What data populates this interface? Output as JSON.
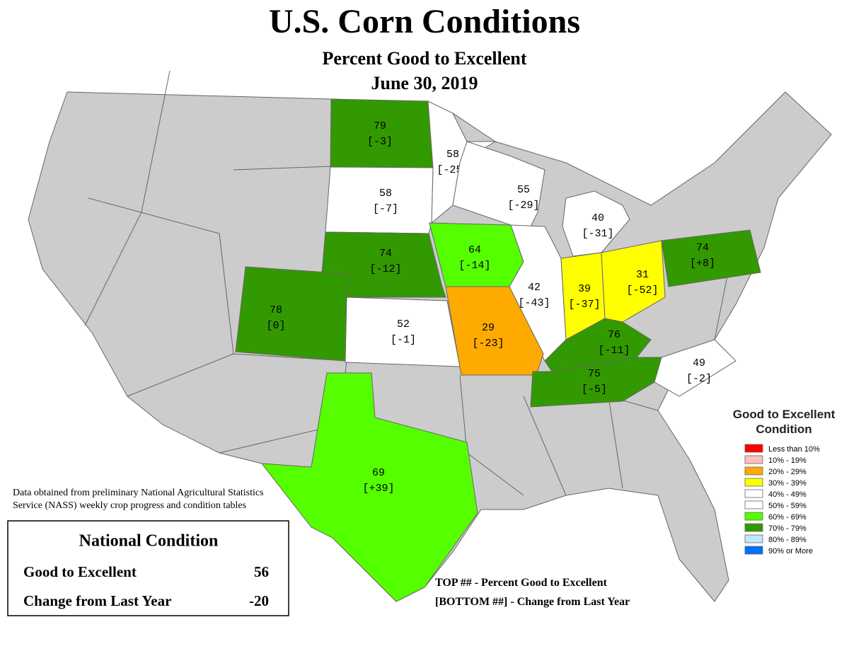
{
  "header": {
    "title": "U.S. Corn Conditions",
    "subtitle": "Percent Good to Excellent",
    "date": "June 30, 2019"
  },
  "states": [
    {
      "value": 79,
      "change": "[-3]",
      "color": "#339900"
    },
    {
      "value": 58,
      "change": "[-25]",
      "color": "#ffffff"
    },
    {
      "value": 58,
      "change": "[-7]",
      "color": "#ffffff"
    },
    {
      "value": 55,
      "change": "[-29]",
      "color": "#ffffff"
    },
    {
      "value": 40,
      "change": "[-31]",
      "color": "#ffffff"
    },
    {
      "value": 74,
      "change": "[-12]",
      "color": "#339900"
    },
    {
      "value": 64,
      "change": "[-14]",
      "color": "#55ff00"
    },
    {
      "value": 42,
      "change": "[-43]",
      "color": "#ffffff"
    },
    {
      "value": 39,
      "change": "[-37]",
      "color": "#ffff00"
    },
    {
      "value": 31,
      "change": "[-52]",
      "color": "#ffff00"
    },
    {
      "value": 74,
      "change": "[+8]",
      "color": "#339900"
    },
    {
      "value": 78,
      "change": "[0]",
      "color": "#339900"
    },
    {
      "value": 52,
      "change": "[-1]",
      "color": "#ffffff"
    },
    {
      "value": 29,
      "change": "[-23]",
      "color": "#ffaa00"
    },
    {
      "value": 76,
      "change": "[-11]",
      "color": "#339900"
    },
    {
      "value": 75,
      "change": "[-5]",
      "color": "#339900"
    },
    {
      "value": 49,
      "change": "[-2]",
      "color": "#ffffff"
    },
    {
      "value": 69,
      "change": "[+39]",
      "color": "#55ff00"
    }
  ],
  "legend": {
    "title": "Good to Excellent Condition",
    "items": [
      {
        "label": "Less than 10%",
        "color": "#ff0000"
      },
      {
        "label": "10% - 19%",
        "color": "#ffbebe"
      },
      {
        "label": "20% - 29%",
        "color": "#ffaa00"
      },
      {
        "label": "30% - 39%",
        "color": "#ffff00"
      },
      {
        "label": "40% - 49%",
        "color": "#ffffff"
      },
      {
        "label": "50% - 59%",
        "color": "#ffffff"
      },
      {
        "label": "60% - 69%",
        "color": "#55ff00"
      },
      {
        "label": "70% - 79%",
        "color": "#339900"
      },
      {
        "label": "80% - 89%",
        "color": "#bee8ff"
      },
      {
        "label": "90% or More",
        "color": "#0070ff"
      }
    ]
  },
  "source_note": [
    "Data obtained from preliminary National Agricultural Statistics",
    "Service (NASS) weekly crop progress and condition tables"
  ],
  "national": {
    "title": "National Condition",
    "rows": [
      [
        "Good to Excellent",
        "56"
      ],
      [
        "Change from Last Year",
        "-20"
      ]
    ]
  },
  "key_note": [
    "TOP ## - Percent Good to Excellent",
    "[BOTTOM ##] - Change from Last Year"
  ]
}
